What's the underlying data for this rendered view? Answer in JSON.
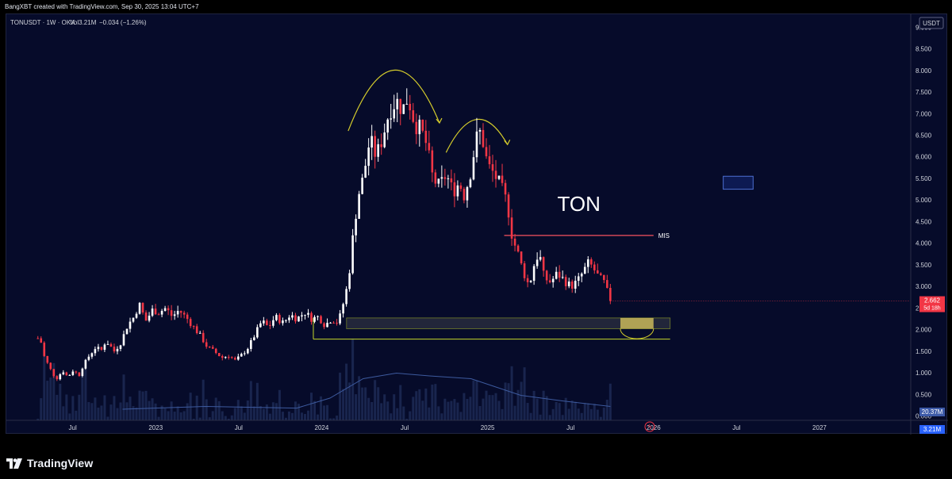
{
  "header": {
    "credit": "BangXBT created with TradingView.com, Sep 30, 2025 13:04 UTC+7"
  },
  "legend": {
    "symbol": "TONUSDT · 1W · OKX",
    "volume": "Vol3.21M",
    "change": "−0.034 (−1.26%)"
  },
  "currency_label": "USDT",
  "chart_annotations": {
    "ton_label": "TON",
    "mis_label": "MIS"
  },
  "price_badge": {
    "value": "2.662",
    "countdown": "5d 18h"
  },
  "volume_badges": {
    "ma": "20.37M",
    "volume": "3.21M"
  },
  "footer": {
    "brand": "TradingView"
  },
  "colors": {
    "background": "#060b2a",
    "up": "#ffffff",
    "down": "#f23645",
    "mis_line": "#f7525f",
    "support_line": "#c6d82a",
    "arc": "#d4cc2c",
    "volume_ma": "#3d5a9e",
    "price_badge": "#f23645",
    "volume_badge": "#2962ff"
  },
  "chart_data": {
    "type": "candlestick",
    "symbol": "TONUSDT",
    "interval": "1W",
    "exchange": "OKX",
    "quote": "USDT",
    "last_price": 2.662,
    "y_axis": {
      "ticks": [
        0.0,
        0.5,
        1.0,
        1.5,
        2.0,
        2.5,
        3.0,
        3.5,
        4.0,
        4.5,
        5.0,
        5.5,
        6.0,
        6.5,
        7.0,
        7.5,
        8.0,
        8.5,
        9.0
      ],
      "tick_labels": [
        "0.000",
        "0.500",
        "1.000",
        "1.500",
        "2.000",
        "2.500",
        "3.000",
        "3.500",
        "4.000",
        "4.500",
        "5.000",
        "5.500",
        "6.000",
        "6.500",
        "7.000",
        "7.500",
        "8.000",
        "8.500",
        "9.000"
      ],
      "range": [
        -0.1,
        9.3
      ]
    },
    "x_axis": {
      "ticks": [
        {
          "label": "Jul",
          "t": 2022.5
        },
        {
          "label": "2023",
          "t": 2023.0
        },
        {
          "label": "Jul",
          "t": 2023.5
        },
        {
          "label": "2024",
          "t": 2024.0
        },
        {
          "label": "Jul",
          "t": 2024.5
        },
        {
          "label": "2025",
          "t": 2025.0
        },
        {
          "label": "Jul",
          "t": 2025.5
        },
        {
          "label": "2026",
          "t": 2026.0
        },
        {
          "label": "Jul",
          "t": 2026.5
        },
        {
          "label": "2027",
          "t": 2027.0
        }
      ],
      "range": [
        2022.1,
        2027.55
      ]
    },
    "price_path": [
      [
        2022.29,
        1.8
      ],
      [
        2022.31,
        1.7
      ],
      [
        2022.33,
        1.35
      ],
      [
        2022.37,
        1.05
      ],
      [
        2022.4,
        0.85
      ],
      [
        2022.44,
        1.05
      ],
      [
        2022.47,
        0.9
      ],
      [
        2022.5,
        1.05
      ],
      [
        2022.54,
        0.95
      ],
      [
        2022.56,
        1.15
      ],
      [
        2022.6,
        1.4
      ],
      [
        2022.64,
        1.6
      ],
      [
        2022.67,
        1.5
      ],
      [
        2022.7,
        1.75
      ],
      [
        2022.75,
        1.5
      ],
      [
        2022.79,
        1.7
      ],
      [
        2022.83,
        2.1
      ],
      [
        2022.87,
        2.3
      ],
      [
        2022.9,
        2.6
      ],
      [
        2022.94,
        2.2
      ],
      [
        2022.98,
        2.45
      ],
      [
        2023.02,
        2.4
      ],
      [
        2023.06,
        2.5
      ],
      [
        2023.1,
        2.3
      ],
      [
        2023.14,
        2.45
      ],
      [
        2023.19,
        2.25
      ],
      [
        2023.23,
        2.05
      ],
      [
        2023.27,
        1.85
      ],
      [
        2023.31,
        1.6
      ],
      [
        2023.35,
        1.5
      ],
      [
        2023.4,
        1.35
      ],
      [
        2023.44,
        1.4
      ],
      [
        2023.48,
        1.28
      ],
      [
        2023.52,
        1.42
      ],
      [
        2023.56,
        1.6
      ],
      [
        2023.6,
        1.9
      ],
      [
        2023.64,
        2.2
      ],
      [
        2023.68,
        2.05
      ],
      [
        2023.72,
        2.3
      ],
      [
        2023.77,
        2.15
      ],
      [
        2023.81,
        2.35
      ],
      [
        2023.85,
        2.25
      ],
      [
        2023.9,
        2.4
      ],
      [
        2023.94,
        2.25
      ],
      [
        2023.98,
        2.3
      ],
      [
        2024.02,
        2.1
      ],
      [
        2024.06,
        2.25
      ],
      [
        2024.1,
        2.15
      ],
      [
        2024.13,
        2.6
      ],
      [
        2024.16,
        3.1
      ],
      [
        2024.19,
        4.2
      ],
      [
        2024.22,
        5.1
      ],
      [
        2024.25,
        5.5
      ],
      [
        2024.29,
        6.4
      ],
      [
        2024.33,
        6.0
      ],
      [
        2024.37,
        6.5
      ],
      [
        2024.41,
        7.1
      ],
      [
        2024.45,
        7.3
      ],
      [
        2024.49,
        7.1
      ],
      [
        2024.52,
        7.4
      ],
      [
        2024.56,
        6.8
      ],
      [
        2024.6,
        6.6
      ],
      [
        2024.63,
        6.3
      ],
      [
        2024.67,
        5.5
      ],
      [
        2024.71,
        5.3
      ],
      [
        2024.75,
        5.6
      ],
      [
        2024.79,
        5.2
      ],
      [
        2024.83,
        5.4
      ],
      [
        2024.86,
        5.1
      ],
      [
        2024.9,
        5.7
      ],
      [
        2024.93,
        6.4
      ],
      [
        2024.96,
        6.6
      ],
      [
        2025.0,
        5.8
      ],
      [
        2025.04,
        5.6
      ],
      [
        2025.08,
        5.3
      ],
      [
        2025.12,
        4.9
      ],
      [
        2025.15,
        4.1
      ],
      [
        2025.18,
        3.8
      ],
      [
        2025.21,
        3.4
      ],
      [
        2025.25,
        3.0
      ],
      [
        2025.28,
        3.5
      ],
      [
        2025.31,
        3.8
      ],
      [
        2025.34,
        3.2
      ],
      [
        2025.38,
        3.1
      ],
      [
        2025.42,
        3.3
      ],
      [
        2025.46,
        3.15
      ],
      [
        2025.5,
        3.0
      ],
      [
        2025.54,
        3.1
      ],
      [
        2025.57,
        3.3
      ],
      [
        2025.61,
        3.55
      ],
      [
        2025.64,
        3.4
      ],
      [
        2025.67,
        3.2
      ],
      [
        2025.7,
        3.1
      ],
      [
        2025.74,
        2.662
      ]
    ],
    "volume_ma_path": [
      [
        2022.8,
        0.2
      ],
      [
        2023.3,
        0.25
      ],
      [
        2023.85,
        0.22
      ],
      [
        2024.05,
        0.4
      ],
      [
        2024.25,
        0.75
      ],
      [
        2024.45,
        0.85
      ],
      [
        2024.65,
        0.8
      ],
      [
        2024.9,
        0.75
      ],
      [
        2025.05,
        0.6
      ],
      [
        2025.2,
        0.45
      ],
      [
        2025.45,
        0.35
      ],
      [
        2025.74,
        0.25
      ]
    ],
    "annotations": {
      "mis_level": {
        "price": 4.18,
        "from": 2025.1,
        "to": 2026.0
      },
      "support_zone": {
        "from_price": 2.02,
        "to_price": 2.27,
        "start": 2024.15,
        "end": 2026.1
      },
      "support_line": {
        "price": 1.78,
        "start": 2023.95,
        "end": 2026.1
      },
      "highlight_zone": {
        "from_price": 2.02,
        "to_price": 2.27,
        "start": 2025.8,
        "end": 2026.0
      },
      "marker_box": {
        "from_price": 5.25,
        "to_price": 5.55,
        "start": 2026.42,
        "end": 2026.6
      }
    }
  }
}
